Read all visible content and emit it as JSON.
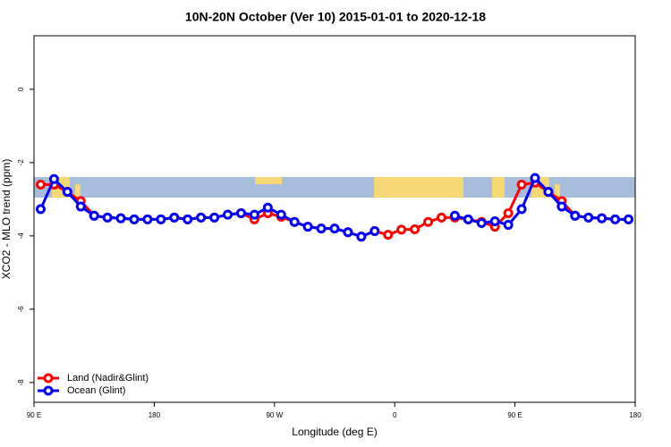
{
  "chart_data": {
    "type": "line",
    "title": "10N-20N October (Ver 10)   2015-01-01 to 2020-12-18",
    "x_label": "Longitude (deg E)",
    "y_label": "XCO2 - MLO trend (ppm)",
    "xlim": [
      90,
      540
    ],
    "ylim": [
      -8.54,
      1.46
    ],
    "xticks": [
      {
        "value": 90,
        "label": "90 E"
      },
      180,
      {
        "value": 270,
        "label": "90 W"
      },
      {
        "value": 360,
        "label": "0"
      },
      {
        "value": 450,
        "label": "90 E"
      },
      {
        "value": 540,
        "label": "180"
      }
    ],
    "yticks": [
      0,
      -2,
      -4,
      -6,
      -8
    ],
    "legend": "bottom-left",
    "x": [
      95,
      105,
      115,
      125,
      135,
      145,
      155,
      165,
      175,
      185,
      195,
      205,
      215,
      225,
      235,
      245,
      255,
      265,
      275,
      285,
      295,
      305,
      315,
      325,
      335,
      345,
      355,
      365,
      375,
      385,
      395,
      405,
      415,
      425,
      435,
      445,
      455,
      465,
      475,
      485,
      495,
      505,
      515,
      525,
      535
    ],
    "series": [
      {
        "name": "Land (Nadir&Glint)",
        "color": "#ff0000",
        "values": [
          -2.6,
          -2.6,
          -2.8,
          -3.05,
          -3.45,
          -3.5,
          -3.52,
          -3.55,
          -3.55,
          -3.55,
          -3.5,
          -3.55,
          -3.5,
          -3.5,
          -3.42,
          -3.38,
          -3.55,
          -3.38,
          -3.48,
          -3.62,
          -3.75,
          -3.8,
          -3.8,
          -3.9,
          -4.02,
          -3.87,
          -3.97,
          -3.83,
          -3.82,
          -3.62,
          -3.5,
          -3.5,
          -3.55,
          -3.62,
          -3.75,
          -3.38,
          -2.6,
          -2.55,
          -2.8,
          -3.05,
          -3.45,
          -3.5,
          -3.52,
          -3.55,
          -3.55
        ]
      },
      {
        "name": "Ocean (Glint)",
        "color": "#0000ff",
        "values": [
          -3.27,
          -2.45,
          -2.8,
          -3.2,
          -3.45,
          -3.5,
          -3.52,
          -3.55,
          -3.55,
          -3.55,
          -3.5,
          -3.55,
          -3.5,
          -3.5,
          -3.42,
          -3.38,
          -3.42,
          -3.23,
          -3.42,
          -3.62,
          -3.75,
          -3.8,
          -3.8,
          -3.9,
          -4.02,
          -3.87,
          null,
          null,
          null,
          null,
          null,
          -3.45,
          -3.55,
          -3.65,
          -3.6,
          -3.7,
          -3.27,
          -2.42,
          -2.8,
          -3.2,
          -3.45,
          -3.5,
          -3.52,
          -3.55,
          -3.55
        ]
      }
    ]
  }
}
